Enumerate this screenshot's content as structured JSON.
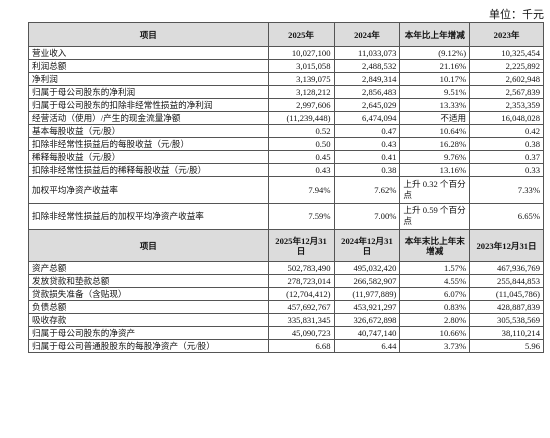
{
  "unit_label": "单位：千元",
  "header1": {
    "item": "项目",
    "y2025": "2025年",
    "y2024": "2024年",
    "yoy": "本年比上年增减",
    "y2023": "2023年"
  },
  "rows1": [
    {
      "label": "营业收入",
      "v2025": "10,027,100",
      "v2024": "11,033,073",
      "yoy": "(9.12%)",
      "v2023": "10,325,454"
    },
    {
      "label": "利润总额",
      "v2025": "3,015,058",
      "v2024": "2,488,532",
      "yoy": "21.16%",
      "v2023": "2,225,892"
    },
    {
      "label": "净利润",
      "v2025": "3,139,075",
      "v2024": "2,849,314",
      "yoy": "10.17%",
      "v2023": "2,602,948"
    },
    {
      "label": "归属于母公司股东的净利润",
      "v2025": "3,128,212",
      "v2024": "2,856,483",
      "yoy": "9.51%",
      "v2023": "2,567,839"
    },
    {
      "label": "归属于母公司股东的扣除非经常性损益的净利润",
      "v2025": "2,997,606",
      "v2024": "2,645,029",
      "yoy": "13.33%",
      "v2023": "2,353,359"
    },
    {
      "label": "经营活动（使用）/产生的现金流量净额",
      "v2025": "(11,239,448)",
      "v2024": "6,474,094",
      "yoy": "不适用",
      "v2023": "16,048,028"
    },
    {
      "label": "基本每股收益（元/股）",
      "v2025": "0.52",
      "v2024": "0.47",
      "yoy": "10.64%",
      "v2023": "0.42"
    },
    {
      "label": "扣除非经常性损益后的每股收益（元/股）",
      "v2025": "0.50",
      "v2024": "0.43",
      "yoy": "16.28%",
      "v2023": "0.38"
    },
    {
      "label": "稀释每股收益（元/股）",
      "v2025": "0.45",
      "v2024": "0.41",
      "yoy": "9.76%",
      "v2023": "0.37"
    },
    {
      "label": "扣除非经常性损益后的稀释每股收益（元/股）",
      "v2025": "0.43",
      "v2024": "0.38",
      "yoy": "13.16%",
      "v2023": "0.33"
    }
  ],
  "rows_tall": [
    {
      "label": "加权平均净资产收益率",
      "v2025": "7.94%",
      "v2024": "7.62%",
      "yoy": "上升 0.32 个百分点",
      "v2023": "7.33%"
    },
    {
      "label": "扣除非经常性损益后的加权平均净资产收益率",
      "v2025": "7.59%",
      "v2024": "7.00%",
      "yoy": "上升 0.59 个百分点",
      "v2023": "6.65%"
    }
  ],
  "header2": {
    "item": "项目",
    "d2025": "2025年12月31日",
    "d2024": "2024年12月31日",
    "yoy": "本年末比上年末增减",
    "d2023": "2023年12月31日"
  },
  "rows2": [
    {
      "label": "资产总额",
      "v2025": "502,783,490",
      "v2024": "495,032,420",
      "yoy": "1.57%",
      "v2023": "467,936,769"
    },
    {
      "label": "发放贷款和垫款总额",
      "v2025": "278,723,014",
      "v2024": "266,582,907",
      "yoy": "4.55%",
      "v2023": "255,844,853"
    },
    {
      "label": "贷款损失准备（含贴现）",
      "v2025": "(12,704,412)",
      "v2024": "(11,977,889)",
      "yoy": "6.07%",
      "v2023": "(11,045,786)"
    },
    {
      "label": "负债总额",
      "v2025": "457,692,767",
      "v2024": "453,921,297",
      "yoy": "0.83%",
      "v2023": "428,887,839"
    },
    {
      "label": "吸收存款",
      "v2025": "335,831,345",
      "v2024": "326,672,898",
      "yoy": "2.80%",
      "v2023": "305,538,569"
    },
    {
      "label": "归属于母公司股东的净资产",
      "v2025": "45,090,723",
      "v2024": "40,747,140",
      "yoy": "10.66%",
      "v2023": "38,110,214"
    },
    {
      "label": "归属于母公司普通股股东的每股净资产（元/股）",
      "v2025": "6.68",
      "v2024": "6.44",
      "yoy": "3.73%",
      "v2023": "5.96"
    }
  ]
}
